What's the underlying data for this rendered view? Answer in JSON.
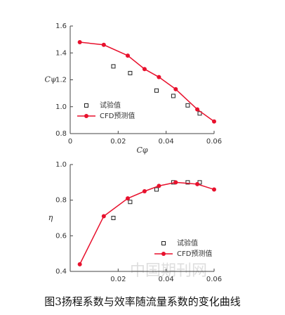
{
  "chart_data": [
    {
      "type": "line",
      "y_label": "Cψ",
      "x_label": "Cφ",
      "xlim": [
        0,
        0.06
      ],
      "xticks": [
        0,
        0.02,
        0.04,
        0.06
      ],
      "ylim": [
        0.8,
        1.6
      ],
      "yticks": [
        {
          "value": 0.8,
          "label": "0.8"
        },
        {
          "value": 1.0,
          "label": "1.0"
        },
        1.2,
        1.4,
        1.6
      ],
      "legend": "lower left",
      "series": [
        {
          "name": "试验值",
          "color": "#222222",
          "style": "markers",
          "x": [
            0.018,
            0.025,
            0.036,
            0.043,
            0.049,
            0.054
          ],
          "values": [
            1.3,
            1.25,
            1.12,
            1.08,
            1.01,
            0.95
          ]
        },
        {
          "name": "CFD预测值",
          "color": "#e8112d",
          "style": "line",
          "x": [
            0.004,
            0.014,
            0.024,
            0.031,
            0.037,
            0.044,
            0.053,
            0.06
          ],
          "values": [
            1.48,
            1.46,
            1.38,
            1.28,
            1.22,
            1.13,
            0.98,
            0.89
          ]
        }
      ]
    },
    {
      "type": "line",
      "y_label": "η",
      "xlim": [
        0,
        0.06
      ],
      "xticks": [
        0.02,
        0.04,
        0.06
      ],
      "ylim": [
        0.4,
        1.0
      ],
      "yticks": [
        0.4,
        0.6,
        0.8,
        {
          "value": 1.0,
          "label": "1.0"
        }
      ],
      "legend": "lower right",
      "series": [
        {
          "name": "试验值",
          "color": "#222222",
          "style": "markers",
          "x": [
            0.018,
            0.025,
            0.036,
            0.043,
            0.049,
            0.054
          ],
          "values": [
            0.7,
            0.79,
            0.86,
            0.9,
            0.9,
            0.9
          ]
        },
        {
          "name": "CFD预测值",
          "color": "#e8112d",
          "style": "line",
          "x": [
            0.004,
            0.014,
            0.024,
            0.031,
            0.037,
            0.044,
            0.053,
            0.06
          ],
          "values": [
            0.44,
            0.71,
            0.81,
            0.85,
            0.88,
            0.9,
            0.89,
            0.86
          ]
        }
      ]
    }
  ],
  "caption": "图3扬程系数与效率随流量系数的变化曲线",
  "watermark": "中国期刊网"
}
